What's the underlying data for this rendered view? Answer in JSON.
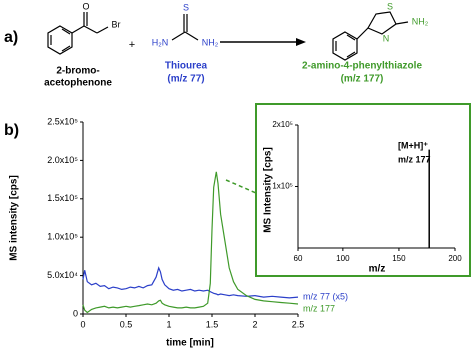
{
  "scheme": {
    "panel_label": "a)",
    "reactant1": {
      "atoms": [
        "O",
        "Br"
      ],
      "name_lines": [
        "2-bromo-",
        "acetophenone"
      ]
    },
    "plus": "+",
    "reactant2": {
      "atoms": [
        "S",
        "H₂N",
        "NH₂"
      ],
      "name": "Thiourea",
      "mz": "(m/z 77)"
    },
    "product": {
      "atoms": [
        "S",
        "N",
        "NH₂"
      ],
      "name": "2-amino-4-phenylthiazole",
      "mz": "(m/z 177)"
    }
  },
  "chart_data": [
    {
      "type": "line",
      "panel_label": "b)",
      "xlabel": "time [min]",
      "ylabel": "MS intensity [cps]",
      "xlim": [
        0,
        2.5
      ],
      "xticks": [
        0,
        0.5,
        1,
        1.5,
        2,
        2.5
      ],
      "ylim": [
        0,
        250000
      ],
      "yticks": [
        0,
        {
          "value": 50000,
          "label": "5.0x10⁴"
        },
        {
          "value": 100000,
          "label": "1.0x10⁵"
        },
        {
          "value": 150000,
          "label": "1.5x10⁵"
        },
        {
          "value": 200000,
          "label": "2.0x10⁵"
        },
        {
          "value": 250000,
          "label": "2.5x10⁵"
        }
      ],
      "x": [
        0,
        0.02,
        0.05,
        0.1,
        0.15,
        0.2,
        0.25,
        0.3,
        0.35,
        0.4,
        0.45,
        0.5,
        0.55,
        0.6,
        0.65,
        0.7,
        0.75,
        0.8,
        0.85,
        0.88,
        0.9,
        0.92,
        0.95,
        1.0,
        1.05,
        1.1,
        1.15,
        1.2,
        1.25,
        1.3,
        1.35,
        1.4,
        1.45,
        1.48,
        1.5,
        1.52,
        1.55,
        1.57,
        1.6,
        1.65,
        1.7,
        1.75,
        1.8,
        1.9,
        2.0,
        2.1,
        2.2,
        2.3,
        2.4,
        2.5
      ],
      "series": [
        {
          "name": "m/z 77 (x5)",
          "color": "#2b3fc9",
          "values": [
            45000,
            57000,
            42000,
            38000,
            40000,
            36000,
            37000,
            33000,
            35000,
            34000,
            32000,
            33000,
            35000,
            34000,
            36000,
            34000,
            37000,
            38000,
            48000,
            60000,
            55000,
            45000,
            38000,
            33000,
            31000,
            32000,
            30000,
            31000,
            32000,
            30000,
            31000,
            30000,
            31000,
            29000,
            28000,
            27000,
            26000,
            25000,
            26000,
            25000,
            24000,
            25000,
            24000,
            23000,
            24000,
            22000,
            23000,
            22000,
            21000,
            22000
          ]
        },
        {
          "name": "m/z 177",
          "color": "#3f9a2a",
          "values": [
            12000,
            5000,
            2000,
            6000,
            8000,
            9000,
            10000,
            8000,
            9000,
            8000,
            9000,
            10000,
            9000,
            10000,
            11000,
            12000,
            13000,
            12000,
            14000,
            17000,
            18000,
            14000,
            12000,
            10000,
            9000,
            8000,
            8000,
            9000,
            8000,
            8000,
            9000,
            10000,
            14000,
            40000,
            110000,
            165000,
            185000,
            170000,
            130000,
            95000,
            60000,
            42000,
            32000,
            24000,
            19000,
            17000,
            16000,
            15000,
            14000,
            13000
          ]
        }
      ]
    },
    {
      "type": "bar",
      "xlabel": "m/z",
      "ylabel": "MS Intensity [cps]",
      "xlim": [
        60,
        200
      ],
      "xticks": [
        60,
        100,
        150,
        200
      ],
      "ylim": [
        0,
        200000
      ],
      "yticks": [
        {
          "value": 100000,
          "label": "1x10⁵"
        },
        {
          "value": 200000,
          "label": "2x10⁵"
        }
      ],
      "x": [
        177
      ],
      "values": [
        160000
      ],
      "color": "#000000",
      "annotations": [
        "[M+H]⁺",
        "m/z 177"
      ]
    }
  ]
}
